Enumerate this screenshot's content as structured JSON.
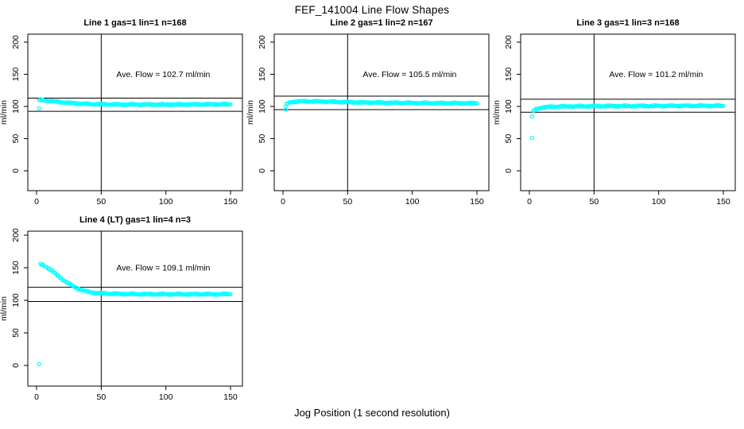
{
  "main": {
    "title": "FEF_141004  Line Flow Shapes",
    "xlabel": "Jog Position (1 second resolution)",
    "point_color": "#00ffff",
    "axis_color": "#000000"
  },
  "chart_data": [
    {
      "type": "scatter",
      "title": "Line 1 gas=1 lin=1 n=168",
      "ylabel": "ml/min",
      "annotation": "Ave. Flow =  102.7  ml/min",
      "ave_flow_ml_min": 102.7,
      "xticks": [
        0,
        50,
        100,
        150
      ],
      "yticks": [
        0,
        50,
        100,
        150,
        200
      ],
      "xlim": [
        -7,
        159
      ],
      "ylim": [
        -30,
        212
      ],
      "vline_x": 50,
      "hlines": [
        113.0,
        92.4
      ],
      "curve_keypoints": [
        [
          2,
          110
        ],
        [
          6,
          109.5
        ],
        [
          10,
          108.5
        ],
        [
          15,
          107.5
        ],
        [
          20,
          106.5
        ],
        [
          25,
          105.5
        ],
        [
          30,
          104.8
        ],
        [
          38,
          104
        ],
        [
          46,
          103.5
        ],
        [
          55,
          103.2
        ],
        [
          70,
          103
        ],
        [
          100,
          103
        ],
        [
          130,
          103.3
        ],
        [
          150,
          103.4
        ]
      ],
      "outliers": [
        [
          2,
          97
        ]
      ]
    },
    {
      "type": "scatter",
      "title": "Line 2 gas=1 lin=2 n=167",
      "ylabel": "ml/min",
      "annotation": "Ave. Flow =  105.5  ml/min",
      "ave_flow_ml_min": 105.5,
      "xticks": [
        0,
        50,
        100,
        150
      ],
      "yticks": [
        0,
        50,
        100,
        150,
        200
      ],
      "xlim": [
        -7,
        159
      ],
      "ylim": [
        -30,
        212
      ],
      "vline_x": 50,
      "hlines": [
        116.1,
        95.0
      ],
      "curve_keypoints": [
        [
          2,
          100
        ],
        [
          3,
          103
        ],
        [
          5,
          106
        ],
        [
          8,
          107.5
        ],
        [
          14,
          108
        ],
        [
          25,
          107.8
        ],
        [
          40,
          107.2
        ],
        [
          60,
          106.3
        ],
        [
          80,
          105.8
        ],
        [
          100,
          105.4
        ],
        [
          125,
          105.1
        ],
        [
          150,
          105
        ]
      ],
      "outliers": [
        [
          2,
          95
        ]
      ]
    },
    {
      "type": "scatter",
      "title": "Line 3 gas=1 lin=3 n=168",
      "ylabel": "ml/min",
      "annotation": "Ave. Flow =  101.2  ml/min",
      "ave_flow_ml_min": 101.2,
      "xticks": [
        0,
        50,
        100,
        150
      ],
      "yticks": [
        0,
        50,
        100,
        150,
        200
      ],
      "xlim": [
        -7,
        159
      ],
      "ylim": [
        -30,
        212
      ],
      "vline_x": 50,
      "hlines": [
        111.3,
        91.1
      ],
      "curve_keypoints": [
        [
          3,
          92
        ],
        [
          4,
          94.5
        ],
        [
          6,
          96.5
        ],
        [
          9,
          98
        ],
        [
          13,
          99
        ],
        [
          20,
          99.8
        ],
        [
          35,
          100.2
        ],
        [
          60,
          100.6
        ],
        [
          90,
          100.8
        ],
        [
          120,
          101
        ],
        [
          150,
          101
        ]
      ],
      "outliers": [
        [
          2,
          51
        ],
        [
          2,
          84
        ]
      ]
    },
    {
      "type": "scatter",
      "title": "Line 4 (LT) gas=1 lin=4 n=3",
      "ylabel": "ml/min",
      "annotation": "Ave. Flow =  109.1  ml/min",
      "ave_flow_ml_min": 109.1,
      "xticks": [
        0,
        50,
        100,
        150
      ],
      "yticks": [
        0,
        50,
        100,
        150,
        200
      ],
      "xlim": [
        -7,
        159
      ],
      "ylim": [
        -30,
        212
      ],
      "vline_x": 50,
      "hlines": [
        120.0,
        98.2
      ],
      "curve_keypoints": [
        [
          3,
          155
        ],
        [
          5,
          154
        ],
        [
          8,
          151
        ],
        [
          11,
          147
        ],
        [
          14,
          142
        ],
        [
          17,
          137
        ],
        [
          20,
          132
        ],
        [
          24,
          127
        ],
        [
          28,
          122
        ],
        [
          32,
          118
        ],
        [
          36,
          115
        ],
        [
          40,
          113
        ],
        [
          45,
          111.5
        ],
        [
          50,
          110.7
        ],
        [
          60,
          110
        ],
        [
          80,
          109.5
        ],
        [
          110,
          109.4
        ],
        [
          150,
          109.5
        ]
      ],
      "outliers": [
        [
          2,
          2
        ]
      ]
    }
  ]
}
